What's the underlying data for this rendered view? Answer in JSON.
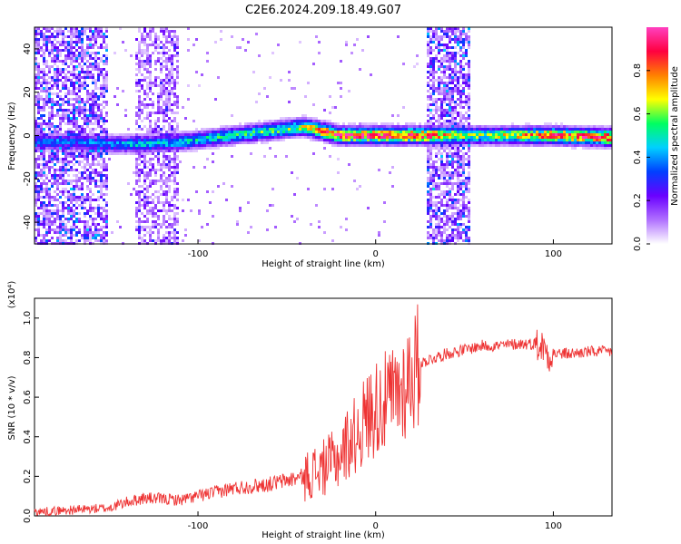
{
  "figure": {
    "title": "C2E6.2024.209.18.49.G07"
  },
  "chart_data": [
    {
      "type": "heatmap",
      "xlabel": "Height of straight line (km)",
      "ylabel": "Frequency (Hz)",
      "xlim": [
        -192,
        133
      ],
      "ylim": [
        -50,
        50
      ],
      "xticks": [
        -100,
        0,
        100
      ],
      "xtick_labels": [
        "-100",
        "0",
        "100"
      ],
      "yticks": [
        -40,
        -20,
        0,
        20,
        40
      ],
      "ytick_labels": [
        "-40",
        "-20",
        "0",
        "20",
        "40"
      ],
      "colorbar": {
        "label": "Normalized spectral amplitude",
        "range": [
          0,
          1
        ],
        "ticks": [
          0,
          0.2,
          0.4,
          0.6,
          0.8
        ],
        "tick_labels": [
          "0.0",
          "0.2",
          "0.4",
          "0.6",
          "0.8"
        ],
        "colormap": [
          "#ffffff",
          "#b070ff",
          "#6a00ff",
          "#0040ff",
          "#00d0ff",
          "#00ff60",
          "#ffff00",
          "#ff8000",
          "#ff0040",
          "#ff40c0"
        ]
      },
      "trace": {
        "x": [
          -192,
          -170,
          -150,
          -130,
          -110,
          -90,
          -70,
          -50,
          -40,
          -30,
          -20,
          -10,
          0,
          10,
          20,
          26,
          56,
          80,
          100,
          133
        ],
        "freq": [
          -3,
          -3,
          -4,
          -4,
          -3,
          -1,
          1,
          3,
          4,
          2,
          0,
          0,
          0,
          0,
          0,
          0,
          0,
          0,
          0,
          -1
        ],
        "peak_amplitude": [
          0.35,
          0.35,
          0.4,
          0.45,
          0.45,
          0.5,
          0.55,
          0.6,
          0.65,
          0.8,
          0.9,
          0.9,
          0.9,
          0.9,
          0.9,
          0.9,
          0.6,
          0.7,
          0.85,
          0.9
        ]
      },
      "noise_bands": [
        {
          "x_start": -192,
          "x_end": -150,
          "amplitude": 0.3
        },
        {
          "x_start": -135,
          "x_end": -110,
          "amplitude": 0.2
        },
        {
          "x_start": 29,
          "x_end": 53,
          "amplitude": 0.3
        }
      ]
    },
    {
      "type": "line",
      "xlabel": "Height of straight line (km)",
      "ylabel": "SNR (10 * v/v)",
      "y_multiplier": "(x10⁴)",
      "xlim": [
        -192,
        133
      ],
      "ylim": [
        0,
        1.1
      ],
      "xticks": [
        -100,
        0,
        100
      ],
      "xtick_labels": [
        "-100",
        "0",
        "100"
      ],
      "yticks": [
        0,
        0.2,
        0.4,
        0.6,
        0.8,
        1.0
      ],
      "ytick_labels": [
        "0.0",
        "0.2",
        "0.4",
        "0.6",
        "0.8",
        "1.0"
      ],
      "series": [
        {
          "color": "#ee3333",
          "x": [
            -192,
            -170,
            -150,
            -140,
            -130,
            -110,
            -100,
            -90,
            -80,
            -70,
            -60,
            -50,
            -40,
            -30,
            -20,
            -15,
            -10,
            -5,
            0,
            5,
            10,
            15,
            20,
            25,
            30,
            40,
            50,
            60,
            70,
            80,
            90,
            95,
            97,
            100,
            110,
            120,
            133
          ],
          "y": [
            0.02,
            0.03,
            0.04,
            0.07,
            0.09,
            0.08,
            0.1,
            0.12,
            0.14,
            0.15,
            0.16,
            0.18,
            0.2,
            0.24,
            0.3,
            0.38,
            0.42,
            0.5,
            0.55,
            0.57,
            0.6,
            0.65,
            0.72,
            0.77,
            0.79,
            0.82,
            0.84,
            0.86,
            0.86,
            0.87,
            0.87,
            0.85,
            0.82,
            0.82,
            0.82,
            0.83,
            0.83
          ]
        }
      ]
    }
  ]
}
